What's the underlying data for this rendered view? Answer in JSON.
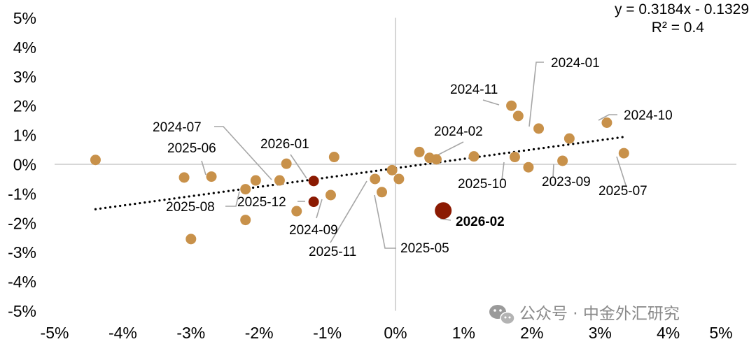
{
  "chart_data": {
    "type": "scatter",
    "x_range": [
      -5,
      5
    ],
    "y_range": [
      -5,
      5
    ],
    "x_ticks": [
      "-5%",
      "-4%",
      "-3%",
      "-2%",
      "-1%",
      "0%",
      "1%",
      "2%",
      "3%",
      "4%",
      "5%"
    ],
    "y_ticks": [
      "5%",
      "4%",
      "3%",
      "2%",
      "1%",
      "0%",
      "-1%",
      "-2%",
      "-3%",
      "-4%",
      "-5%"
    ],
    "trendline": {
      "slope": 0.3184,
      "intercept": -0.1329,
      "x_from": -4.4,
      "x_to": 3.35
    },
    "equation": "y = 0.3184x - 0.1329",
    "r_squared": "R² = 0.4",
    "colors": {
      "point": "#C8914A",
      "highlight": "#8B1A02",
      "axis": "#BFBFBF",
      "trend": "#000000",
      "leader": "#A6A6A6",
      "watermark": "#8A8A8A"
    },
    "points": [
      {
        "x": -4.4,
        "y": 0.15
      },
      {
        "x": -3.1,
        "y": -0.45
      },
      {
        "x": -2.7,
        "y": -0.42
      },
      {
        "x": -2.2,
        "y": -0.85
      },
      {
        "x": -2.05,
        "y": -0.55
      },
      {
        "x": -2.2,
        "y": -1.9
      },
      {
        "x": -3.0,
        "y": -2.55
      },
      {
        "x": -1.7,
        "y": -0.55
      },
      {
        "x": -1.6,
        "y": 0.02
      },
      {
        "x": -1.45,
        "y": -1.6
      },
      {
        "x": -1.2,
        "y": -0.57,
        "type": "highlight"
      },
      {
        "x": -1.2,
        "y": -1.28,
        "type": "highlight"
      },
      {
        "x": -0.95,
        "y": -1.05
      },
      {
        "x": -0.9,
        "y": 0.25
      },
      {
        "x": -0.3,
        "y": -0.5
      },
      {
        "x": -0.2,
        "y": -0.95
      },
      {
        "x": -0.05,
        "y": -0.2
      },
      {
        "x": 0.05,
        "y": -0.5
      },
      {
        "x": 0.35,
        "y": 0.42
      },
      {
        "x": 0.5,
        "y": 0.22
      },
      {
        "x": 0.6,
        "y": 0.17
      },
      {
        "x": 0.7,
        "y": -1.58,
        "type": "big"
      },
      {
        "x": 1.15,
        "y": 0.27
      },
      {
        "x": 1.7,
        "y": 2.0
      },
      {
        "x": 1.8,
        "y": 1.65
      },
      {
        "x": 1.75,
        "y": 0.25
      },
      {
        "x": 1.95,
        "y": -0.1
      },
      {
        "x": 2.1,
        "y": 1.22
      },
      {
        "x": 2.45,
        "y": 0.12
      },
      {
        "x": 2.55,
        "y": 0.88
      },
      {
        "x": 3.1,
        "y": 1.42
      },
      {
        "x": 3.35,
        "y": 0.38
      }
    ],
    "annotations": [
      {
        "text": "2024-01",
        "bold": false
      },
      {
        "text": "2024-11",
        "bold": false
      },
      {
        "text": "2024-10",
        "bold": false
      },
      {
        "text": "2024-07",
        "bold": false
      },
      {
        "text": "2024-02",
        "bold": false
      },
      {
        "text": "2025-06",
        "bold": false
      },
      {
        "text": "2026-01",
        "bold": false
      },
      {
        "text": "2025-10",
        "bold": false
      },
      {
        "text": "2023-09",
        "bold": false
      },
      {
        "text": "2025-07",
        "bold": false
      },
      {
        "text": "2025-08",
        "bold": false
      },
      {
        "text": "2025-12",
        "bold": false
      },
      {
        "text": "2026-02",
        "bold": true
      },
      {
        "text": "2024-09",
        "bold": false
      },
      {
        "text": "2025-11",
        "bold": false
      },
      {
        "text": "2025-05",
        "bold": false
      }
    ]
  },
  "watermark": {
    "icon": "wechat-icon",
    "text": "公众号 · 中金外汇研究"
  }
}
